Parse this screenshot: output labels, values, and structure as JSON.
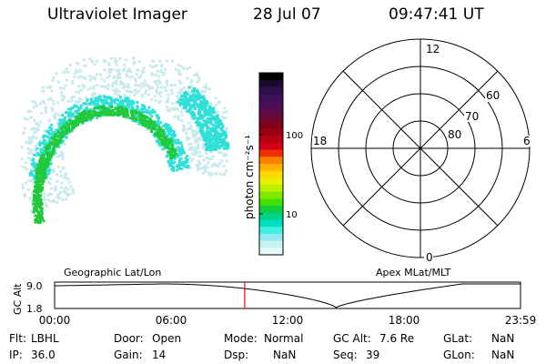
{
  "header": {
    "instrument": "Ultraviolet Imager",
    "date": "28 Jul 07",
    "time": "09:47:41 UT"
  },
  "colorbar": {
    "label": "photon cm⁻²s⁻¹",
    "ticks": [
      "100",
      "10"
    ],
    "colors": [
      "#000000",
      "#1a0b2e",
      "#2d0f4a",
      "#3a1156",
      "#4a0f5a",
      "#5a0d4a",
      "#6b0a30",
      "#800015",
      "#9a0010",
      "#b80010",
      "#d4001a",
      "#ee3000",
      "#ff8000",
      "#ffb000",
      "#ffd600",
      "#e8f000",
      "#b8f000",
      "#80e800",
      "#40e000",
      "#10d040",
      "#00d28a",
      "#00e0c0",
      "#40f0e0",
      "#90ecec",
      "#c8f2f2",
      "#e6fafa"
    ]
  },
  "polar_plot": {
    "labels_mlt": {
      "top": "12",
      "bottom": "0",
      "left": "18",
      "right": "6"
    },
    "labels_lat": [
      "60",
      "70",
      "80"
    ]
  },
  "timeline": {
    "title_left": "Geographic Lat/Lon",
    "title_right": "Apex MLat/MLT",
    "ylabel": "GC Alt",
    "ytick_top": "9.0",
    "ytick_bottom": "1.8",
    "xticks": [
      "00:00",
      "06:00",
      "12:00",
      "18:00",
      "23:59"
    ],
    "current_hour": 9.79,
    "apogee_hour": 5.5,
    "perigee_hour": 14.5
  },
  "status": {
    "flt_label": "Flt:",
    "flt_value": "LBHL",
    "ip_label": "IP:",
    "ip_value": "36.0",
    "door_label": "Door:",
    "door_value": "Open",
    "gain_label": "Gain:",
    "gain_value": "14",
    "mode_label": "Mode:",
    "mode_value": "Normal",
    "dsp_label": "Dsp:",
    "dsp_value": "NaN",
    "gcalt_label": "GC Alt:",
    "gcalt_value": "7.6 Re",
    "seq_label": "Seq:",
    "seq_value": "39",
    "glat_label": "GLat:",
    "glat_value": "NaN",
    "glon_label": "GLon:",
    "glon_value": "NaN"
  },
  "style": {
    "cursor_color": "#ff0000",
    "aurora_core": "#22c93a",
    "aurora_mid": "#2fe0d8",
    "aurora_faint": "#c9eaec"
  }
}
